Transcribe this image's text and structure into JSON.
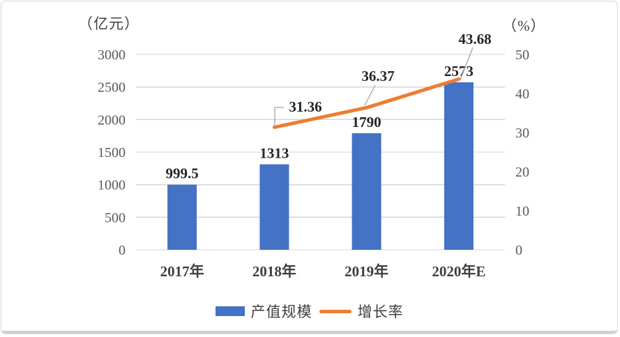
{
  "chart_data": {
    "type": "bar",
    "subtype": "combo-bar-line",
    "title": "",
    "categories": [
      "2017年",
      "2018年",
      "2019年",
      "2020年E"
    ],
    "series": [
      {
        "name": "产值规模",
        "type": "bar",
        "axis": "left",
        "color": "#4472C4",
        "values": [
          999.5,
          1313,
          1790,
          2573
        ],
        "labels": [
          "999.5",
          "1313",
          "1790",
          "2573"
        ]
      },
      {
        "name": "增长率",
        "type": "line",
        "axis": "right",
        "color": "#ED7D31",
        "values": [
          null,
          31.36,
          36.37,
          43.68
        ],
        "labels": [
          null,
          "31.36",
          "36.37",
          "43.68"
        ]
      }
    ],
    "left_axis": {
      "title": "（亿元）",
      "min": 0,
      "max": 3000,
      "step": 500,
      "tick_labels": [
        "0",
        "500",
        "1000",
        "1500",
        "2000",
        "2500",
        "3000"
      ]
    },
    "right_axis": {
      "title": "（%）",
      "min": 0,
      "max": 50,
      "step": 10,
      "tick_labels": [
        "0",
        "10",
        "20",
        "30",
        "40",
        "50"
      ]
    },
    "legend": {
      "position": "bottom",
      "entries": [
        "产值规模",
        "增长率"
      ]
    },
    "grid": true,
    "colors": {
      "bar": "#4472C4",
      "line": "#ED7D31",
      "gridline": "#D6D6D6",
      "tick_text": "#595959",
      "label_text": "#262626",
      "leader_line": "#A6A6A6"
    }
  }
}
